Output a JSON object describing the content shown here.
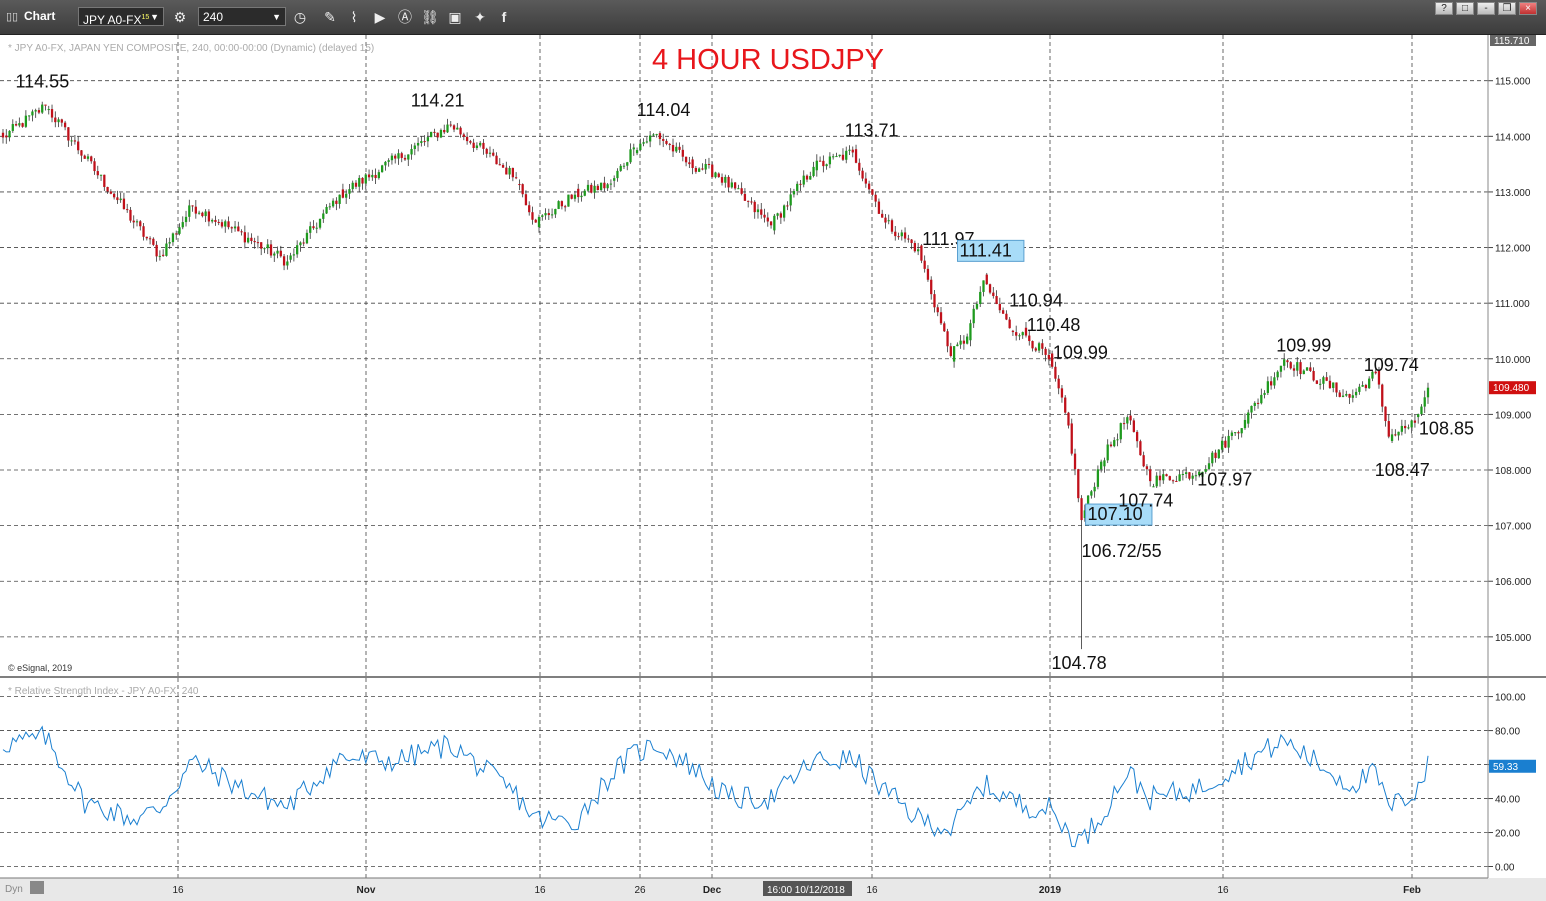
{
  "window": {
    "title": "Chart",
    "symbol": "JPY A0-FX",
    "symbol_sup": "15",
    "interval": "240",
    "buttons": [
      "?",
      "□",
      "-",
      "❐",
      "×"
    ]
  },
  "price_panel": {
    "caption": "* JPY A0-FX, JAPAN YEN COMPOSITE, 240, 00:00-00:00 (Dynamic) (delayed 15)",
    "copyright": "© eSignal, 2019",
    "top_value_tag": "115.710",
    "last_value_tag": "109.480"
  },
  "rsi_panel": {
    "caption": "* Relative Strength Index - JPY A0-FX, 240",
    "last_value_tag": "59.33"
  },
  "footer": {
    "left_label": "Dyn",
    "cursor_time": "16:00 10/12/2018"
  },
  "colors": {
    "up": "#1e9a1e",
    "down": "#c0101a",
    "rsi_line": "#1a7fd0",
    "title_red": "#e8161b",
    "highlight_box": "#a8dcf8",
    "last_tag": "#d01010",
    "rsi_tag": "#1a7fd0"
  },
  "chart_data": [
    {
      "type": "candlestick",
      "title": "4 HOUR USDJPY",
      "ylim": [
        104.35,
        115.75
      ],
      "y_ticks": [
        "115.000",
        "114.000",
        "113.000",
        "112.000",
        "111.000",
        "110.000",
        "109.000",
        "108.000",
        "107.000",
        "106.000",
        "105.000"
      ],
      "x_ticks": [
        "16",
        "Nov",
        "16",
        "26",
        "Dec",
        "16",
        "2019",
        "16",
        "Feb"
      ],
      "anchors": [
        {
          "bar": 0,
          "price": 113.98
        },
        {
          "bar": 13,
          "price": 114.55
        },
        {
          "bar": 48,
          "price": 111.85
        },
        {
          "bar": 58,
          "price": 112.75
        },
        {
          "bar": 87,
          "price": 111.75
        },
        {
          "bar": 103,
          "price": 112.95
        },
        {
          "bar": 137,
          "price": 114.21
        },
        {
          "bar": 157,
          "price": 113.25
        },
        {
          "bar": 163,
          "price": 112.45
        },
        {
          "bar": 175,
          "price": 112.95
        },
        {
          "bar": 186,
          "price": 113.15
        },
        {
          "bar": 193,
          "price": 113.8
        },
        {
          "bar": 200,
          "price": 114.04
        },
        {
          "bar": 210,
          "price": 113.5
        },
        {
          "bar": 218,
          "price": 113.35
        },
        {
          "bar": 235,
          "price": 112.4
        },
        {
          "bar": 248,
          "price": 113.45
        },
        {
          "bar": 260,
          "price": 113.71
        },
        {
          "bar": 270,
          "price": 112.45
        },
        {
          "bar": 280,
          "price": 111.97
        },
        {
          "bar": 290,
          "price": 110.05
        },
        {
          "bar": 295,
          "price": 110.4
        },
        {
          "bar": 300,
          "price": 111.41
        },
        {
          "bar": 308,
          "price": 110.55
        },
        {
          "bar": 312,
          "price": 110.48
        },
        {
          "bar": 320,
          "price": 109.99
        },
        {
          "bar": 326,
          "price": 108.8
        },
        {
          "bar": 330,
          "price": 107.1
        },
        {
          "bar": 336,
          "price": 108.15
        },
        {
          "bar": 344,
          "price": 108.95
        },
        {
          "bar": 351,
          "price": 107.8
        },
        {
          "bar": 366,
          "price": 107.97
        },
        {
          "bar": 380,
          "price": 108.9
        },
        {
          "bar": 392,
          "price": 109.99
        },
        {
          "bar": 412,
          "price": 109.3
        },
        {
          "bar": 420,
          "price": 109.74
        },
        {
          "bar": 424,
          "price": 108.6
        },
        {
          "bar": 432,
          "price": 108.85
        },
        {
          "bar": 436,
          "price": 109.48
        }
      ],
      "annotations": [
        {
          "text": "114.55",
          "bar": 13,
          "price": 114.55,
          "dx": -30,
          "dy": -18
        },
        {
          "text": "114.21",
          "bar": 137,
          "price": 114.21,
          "dx": -40,
          "dy": -18
        },
        {
          "text": "114.04",
          "bar": 200,
          "price": 114.04,
          "dx": -20,
          "dy": -18
        },
        {
          "text": "113.71",
          "bar": 260,
          "price": 113.71,
          "dx": -8,
          "dy": -16
        },
        {
          "text": "111.97",
          "bar": 280,
          "price": 111.97,
          "dx": 4,
          "dy": -4
        },
        {
          "text": "111.41",
          "bar": 300,
          "price": 111.41,
          "dx": -24,
          "dy": -24,
          "boxed": true
        },
        {
          "text": "110.94",
          "bar": 306,
          "price": 110.94,
          "dx": 6,
          "dy": 0
        },
        {
          "text": "110.48",
          "bar": 312,
          "price": 110.48,
          "dx": 4,
          "dy": -1
        },
        {
          "text": "109.99",
          "bar": 320,
          "price": 109.99,
          "dx": 4,
          "dy": -1
        },
        {
          "text": "107.10",
          "bar": 330,
          "price": 107.1,
          "dx": 6,
          "dy": 0,
          "boxed": true
        },
        {
          "text": "106.72/55",
          "bar": 330,
          "price": 106.72,
          "dx": 0,
          "dy": 16
        },
        {
          "text": "104.78",
          "bar": 330,
          "price": 104.78,
          "dx": -30,
          "dy": 20
        },
        {
          "text": "107.74",
          "bar": 351,
          "price": 107.74,
          "dx": -32,
          "dy": 22
        },
        {
          "text": "107.97",
          "bar": 366,
          "price": 107.97,
          "dx": -2,
          "dy": 14
        },
        {
          "text": "109.99",
          "bar": 392,
          "price": 109.99,
          "dx": -8,
          "dy": -8
        },
        {
          "text": "109.74",
          "bar": 420,
          "price": 109.74,
          "dx": -12,
          "dy": -2
        },
        {
          "text": "108.85",
          "bar": 432,
          "price": 108.85,
          "dx": 4,
          "dy": 12
        },
        {
          "text": "108.47",
          "bar": 424,
          "price": 108.47,
          "dx": -14,
          "dy": 32
        }
      ],
      "wicks": [
        {
          "bar": 330,
          "low": 104.78
        },
        {
          "bar": 300,
          "high": 111.41
        },
        {
          "bar": 13,
          "high": 114.55
        }
      ]
    },
    {
      "type": "line",
      "title": "Relative Strength Index",
      "ylim": [
        -5,
        108
      ],
      "y_ticks": [
        "100.00",
        "80.00",
        "60.00",
        "40.00",
        "20.00",
        "0.00"
      ],
      "anchors": [
        {
          "bar": 0,
          "v": 72
        },
        {
          "bar": 13,
          "v": 76
        },
        {
          "bar": 25,
          "v": 38
        },
        {
          "bar": 40,
          "v": 28
        },
        {
          "bar": 48,
          "v": 34
        },
        {
          "bar": 58,
          "v": 62
        },
        {
          "bar": 75,
          "v": 44
        },
        {
          "bar": 87,
          "v": 35
        },
        {
          "bar": 103,
          "v": 64
        },
        {
          "bar": 120,
          "v": 62
        },
        {
          "bar": 137,
          "v": 72
        },
        {
          "bar": 157,
          "v": 42
        },
        {
          "bar": 163,
          "v": 28
        },
        {
          "bar": 175,
          "v": 26
        },
        {
          "bar": 186,
          "v": 54
        },
        {
          "bar": 193,
          "v": 66
        },
        {
          "bar": 200,
          "v": 72
        },
        {
          "bar": 210,
          "v": 60
        },
        {
          "bar": 222,
          "v": 40
        },
        {
          "bar": 235,
          "v": 40
        },
        {
          "bar": 248,
          "v": 62
        },
        {
          "bar": 260,
          "v": 63
        },
        {
          "bar": 270,
          "v": 44
        },
        {
          "bar": 280,
          "v": 28
        },
        {
          "bar": 290,
          "v": 22
        },
        {
          "bar": 300,
          "v": 48
        },
        {
          "bar": 312,
          "v": 36
        },
        {
          "bar": 320,
          "v": 34
        },
        {
          "bar": 326,
          "v": 20
        },
        {
          "bar": 330,
          "v": 15
        },
        {
          "bar": 336,
          "v": 30
        },
        {
          "bar": 344,
          "v": 56
        },
        {
          "bar": 351,
          "v": 40
        },
        {
          "bar": 366,
          "v": 46
        },
        {
          "bar": 380,
          "v": 62
        },
        {
          "bar": 392,
          "v": 74
        },
        {
          "bar": 412,
          "v": 48
        },
        {
          "bar": 420,
          "v": 55
        },
        {
          "bar": 424,
          "v": 34
        },
        {
          "bar": 432,
          "v": 44
        },
        {
          "bar": 436,
          "v": 59
        }
      ]
    }
  ]
}
